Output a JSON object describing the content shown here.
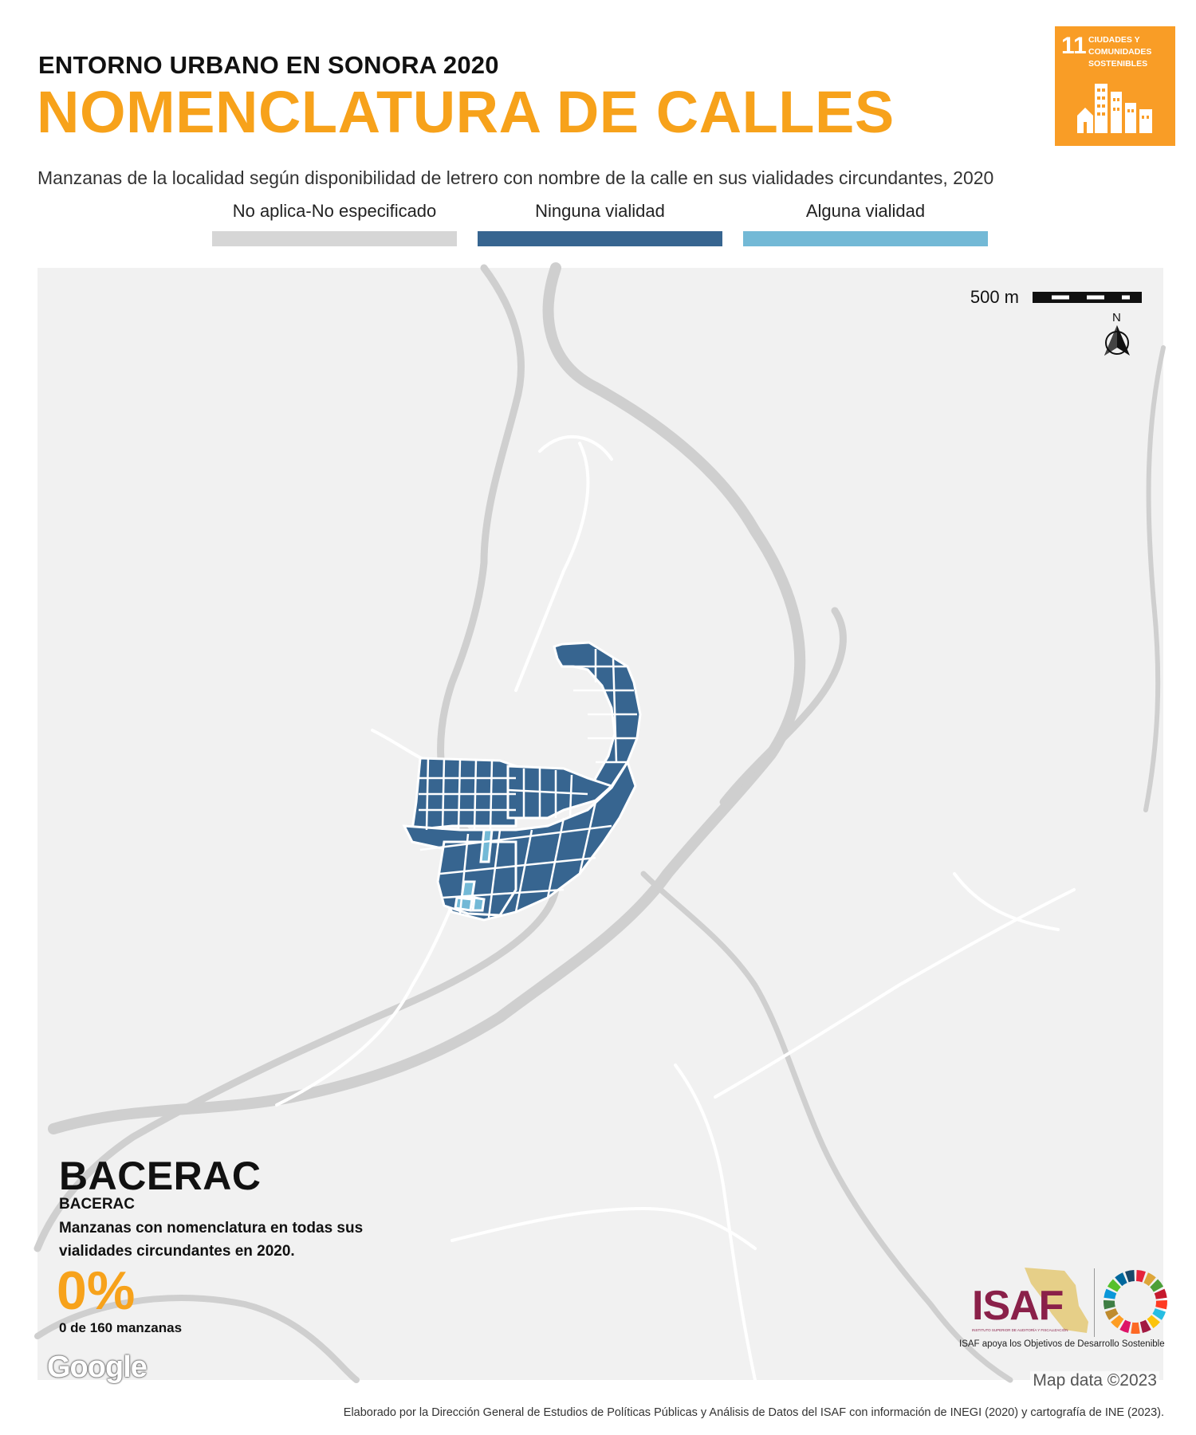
{
  "header": {
    "eyebrow": "ENTORNO URBANO EN SONORA 2020",
    "title": "NOMENCLATURA DE CALLES",
    "subtitle": "Manzanas de la localidad según disponibilidad de letrero con nombre de la calle en sus vialidades circundantes, 2020"
  },
  "sdg_badge": {
    "number": "11",
    "text": "CIUDADES Y COMUNIDADES SOSTENIBLES",
    "color": "#f99d26"
  },
  "legend": [
    {
      "label": "No aplica-No especificado",
      "color": "#d6d6d6"
    },
    {
      "label": "Ninguna vialidad",
      "color": "#376590"
    },
    {
      "label": "Alguna vialidad",
      "color": "#73b9d6"
    }
  ],
  "map": {
    "scale_label": "500 m",
    "north_label": "N",
    "google_label": "Google",
    "attribution": "Map data ©2023",
    "background_color": "#f1f1f1",
    "river_color": "#cfcfcf",
    "road_color": "#ffffff"
  },
  "locality": {
    "name": "BACERAC",
    "sub_name": "BACERAC",
    "description": "Manzanas con nomenclatura en todas sus vialidades circundantes en 2020.",
    "percent": "0%",
    "count": "0 de 160 manzanas"
  },
  "isaf": {
    "word": "ISAF",
    "small_text": "INSTITUTO SUPERIOR DE AUDITORÍA Y FISCALIZACIÓN",
    "tagline": "ISAF apoya los Objetivos de Desarrollo Sostenible",
    "primary_color": "#8a2049"
  },
  "footer": "Elaborado por la Dirección General de Estudios de Políticas Públicas y Análisis de Datos del ISAF con información de INEGI (2020) y cartografía de INE (2023)."
}
